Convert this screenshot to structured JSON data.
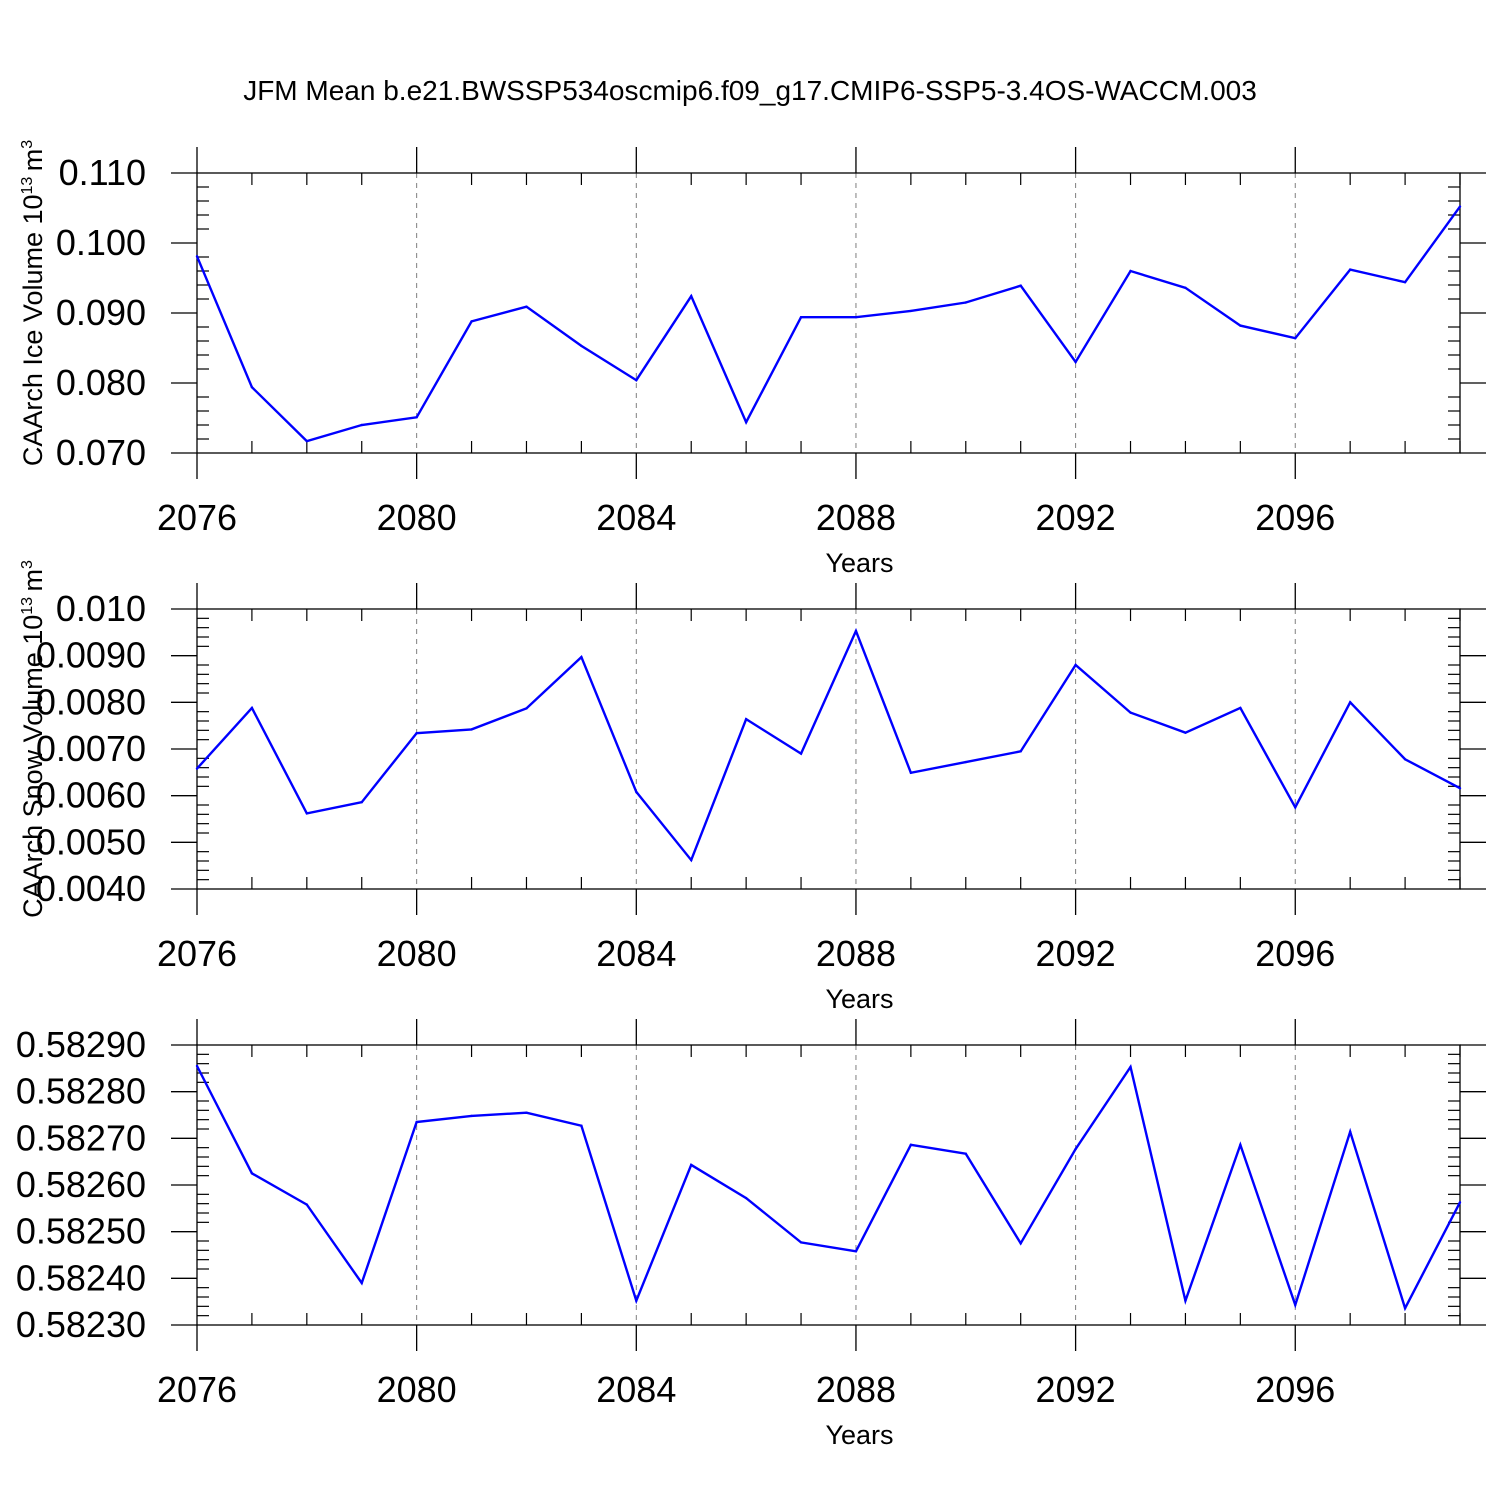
{
  "title": "JFM Mean b.e21.BWSSP534oscmip6.f09_g17.CMIP6-SSP5-3.4OS-WACCM.003",
  "colors": {
    "series": "#0000ff",
    "axis": "#000000",
    "grid": "#7f7f7f"
  },
  "chart_data": [
    {
      "type": "line",
      "xlabel": "Years",
      "ylabel_main": "CAArch Ice Volume 10",
      "ylabel_exp": "13",
      "ylabel_unit": "m",
      "ylabel_unit_exp": "3",
      "x": [
        2076,
        2077,
        2078,
        2079,
        2080,
        2081,
        2082,
        2083,
        2084,
        2085,
        2086,
        2087,
        2088,
        2089,
        2090,
        2091,
        2092,
        2093,
        2094,
        2095,
        2096,
        2097,
        2098,
        2099
      ],
      "values": [
        0.0981,
        0.0794,
        0.0717,
        0.074,
        0.0751,
        0.0888,
        0.0909,
        0.0853,
        0.0804,
        0.0924,
        0.0744,
        0.0894,
        0.0894,
        0.0903,
        0.0915,
        0.0939,
        0.083,
        0.096,
        0.0936,
        0.0882,
        0.0864,
        0.0962,
        0.0944,
        0.1052
      ],
      "xlim": [
        2076,
        2099
      ],
      "ylim": [
        0.07,
        0.11
      ],
      "xticks": [
        "2076",
        "2080",
        "2084",
        "2088",
        "2092",
        "2096"
      ],
      "yticks": [
        "0.110",
        "0.100",
        "0.090",
        "0.080",
        "0.070"
      ],
      "grid": "vertical dashed at major x ticks"
    },
    {
      "type": "line",
      "xlabel": "Years",
      "ylabel_main": "CAArch Snow Volume 10",
      "ylabel_exp": "13",
      "ylabel_unit": "m",
      "ylabel_unit_exp": "3",
      "x": [
        2076,
        2077,
        2078,
        2079,
        2080,
        2081,
        2082,
        2083,
        2084,
        2085,
        2086,
        2087,
        2088,
        2089,
        2090,
        2091,
        2092,
        2093,
        2094,
        2095,
        2096,
        2097,
        2098,
        2099
      ],
      "values": [
        0.00658,
        0.00788,
        0.00562,
        0.00586,
        0.00734,
        0.00742,
        0.00787,
        0.00897,
        0.00608,
        0.00462,
        0.00764,
        0.0069,
        0.00953,
        0.00649,
        0.00672,
        0.00695,
        0.0088,
        0.00778,
        0.00735,
        0.00788,
        0.00575,
        0.008,
        0.00678,
        0.00616
      ],
      "xlim": [
        2076,
        2099
      ],
      "ylim": [
        0.004,
        0.01
      ],
      "xticks": [
        "2076",
        "2080",
        "2084",
        "2088",
        "2092",
        "2096"
      ],
      "yticks": [
        "0.010",
        "0.0090",
        "0.0080",
        "0.0070",
        "0.0060",
        "0.0050",
        "0.0040"
      ],
      "grid": "vertical dashed at major x ticks"
    },
    {
      "type": "line",
      "xlabel": "Years",
      "x": [
        2076,
        2077,
        2078,
        2079,
        2080,
        2081,
        2082,
        2083,
        2084,
        2085,
        2086,
        2087,
        2088,
        2089,
        2090,
        2091,
        2092,
        2093,
        2094,
        2095,
        2096,
        2097,
        2098,
        2099
      ],
      "values": [
        0.582855,
        0.582625,
        0.582558,
        0.58239,
        0.582735,
        0.582748,
        0.582755,
        0.582727,
        0.582352,
        0.582643,
        0.582572,
        0.582477,
        0.582458,
        0.582686,
        0.582667,
        0.582475,
        0.582677,
        0.582853,
        0.582352,
        0.582686,
        0.582343,
        0.582714,
        0.582336,
        0.582563
      ],
      "xlim": [
        2076,
        2099
      ],
      "ylim": [
        0.5823,
        0.5829
      ],
      "xticks": [
        "2076",
        "2080",
        "2084",
        "2088",
        "2092",
        "2096"
      ],
      "yticks": [
        "0.58290",
        "0.58280",
        "0.58270",
        "0.58260",
        "0.58250",
        "0.58240",
        "0.58230"
      ],
      "grid": "vertical dashed at major x ticks"
    }
  ]
}
